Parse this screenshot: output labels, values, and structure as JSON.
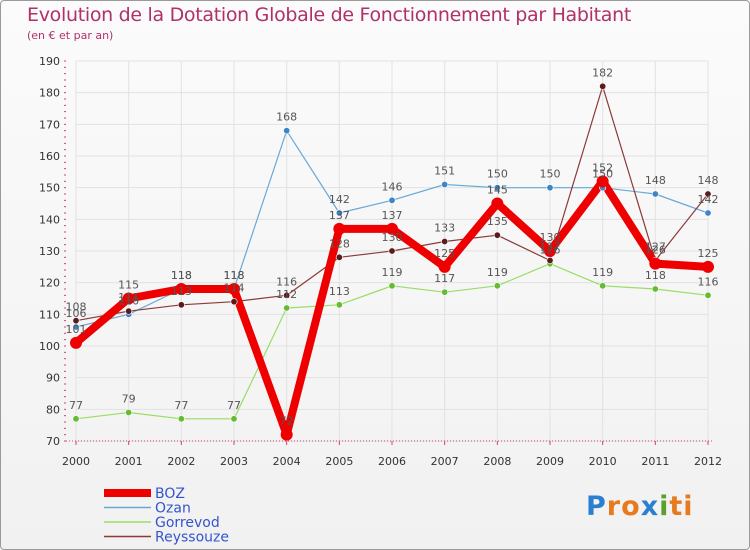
{
  "header": {
    "title": "Evolution de la Dotation Globale de Fonctionnement par Habitant",
    "subtitle": "(en € et par an)"
  },
  "logo": {
    "text": "Proxiti",
    "letters": [
      "P",
      "r",
      "o",
      "x",
      "i",
      "t",
      "i"
    ],
    "colors": [
      "#2a7fd0",
      "#e87a1e",
      "#e87a1e",
      "#2a7fd0",
      "#5aa02c",
      "#e87a1e",
      "#e87a1e"
    ]
  },
  "chart_data": {
    "type": "line",
    "title": "Evolution de la Dotation Globale de Fonctionnement par Habitant",
    "subtitle": "(en € et par an)",
    "xlabel": "",
    "ylabel": "",
    "ylim": [
      70,
      190
    ],
    "yticks": [
      70,
      80,
      90,
      100,
      110,
      120,
      130,
      140,
      150,
      160,
      170,
      180,
      190
    ],
    "categories": [
      "2000",
      "2001",
      "2002",
      "2003",
      "2004",
      "2005",
      "2006",
      "2007",
      "2008",
      "2009",
      "2010",
      "2011",
      "2012"
    ],
    "grid": true,
    "legend": "bottom-left",
    "series": [
      {
        "name": "Gorrevod",
        "color": "#99dd66",
        "marker": "#66bb33",
        "width": 1.2,
        "legendWidth": 1.5,
        "values": [
          77,
          79,
          77,
          77,
          112,
          113,
          119,
          117,
          119,
          126,
          119,
          118,
          116
        ],
        "labels": [
          "77",
          "79",
          "77",
          "77",
          "112",
          "113",
          "119",
          "117",
          "119",
          "126",
          "119",
          "118",
          "116"
        ]
      },
      {
        "name": "Ozan",
        "color": "#6aa9d6",
        "marker": "#3a86c8",
        "width": 1.2,
        "legendWidth": 1.5,
        "values": [
          106,
          110,
          118,
          118,
          168,
          142,
          146,
          151,
          150,
          150,
          150,
          148,
          142
        ],
        "labels": [
          "106",
          "110",
          "118",
          "118",
          "168",
          "142",
          "146",
          "151",
          "150",
          "150",
          "150",
          "148",
          "142"
        ]
      },
      {
        "name": "Reyssouze",
        "color": "#8b3a3a",
        "marker": "#5c1a1a",
        "width": 1.2,
        "legendWidth": 1.5,
        "values": [
          108,
          111,
          113,
          114,
          116,
          128,
          130,
          133,
          135,
          127,
          182,
          127,
          148
        ],
        "labels": [
          "108",
          "111",
          "113",
          "114",
          "116",
          "128",
          "130",
          "133",
          "135",
          "127",
          "182",
          "127",
          "148"
        ]
      },
      {
        "name": "BOZ",
        "color": "#ee0000",
        "marker": "#ee0000",
        "width": 8,
        "legendWidth": 8,
        "values": [
          101,
          115,
          118,
          118,
          72,
          137,
          137,
          125,
          145,
          130,
          152,
          126,
          125
        ],
        "labels": [
          "101",
          "115",
          "118",
          "118",
          "72",
          "137",
          "137",
          "125",
          "145",
          "130",
          "152",
          "126",
          "125"
        ]
      }
    ],
    "legendOrder": [
      "BOZ",
      "Ozan",
      "Gorrevod",
      "Reyssouze"
    ]
  }
}
